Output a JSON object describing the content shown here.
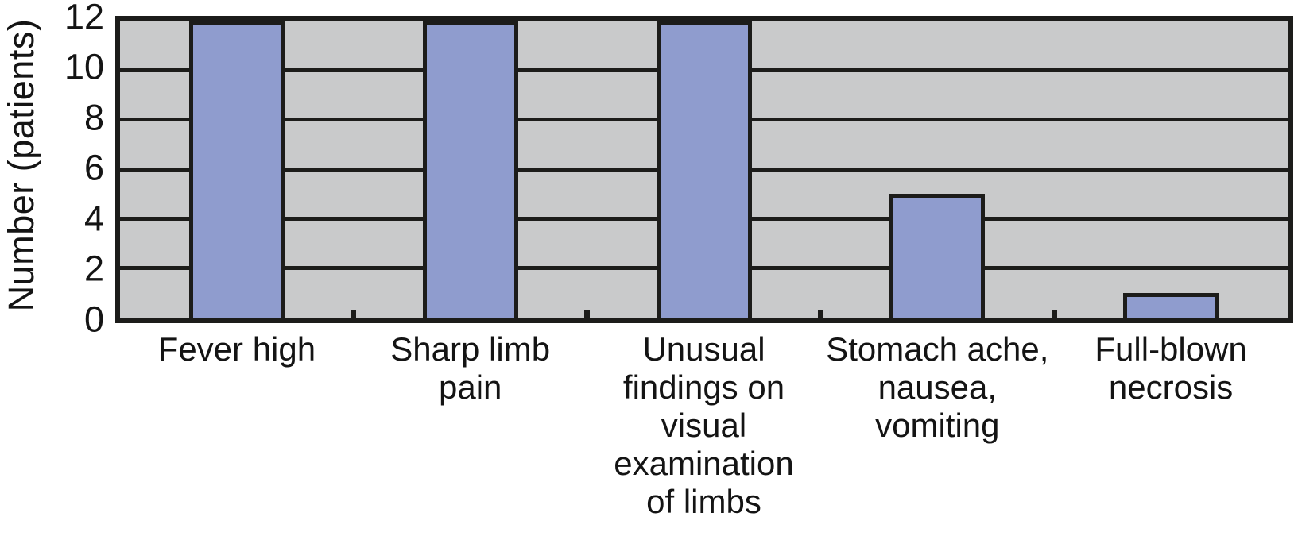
{
  "figure": {
    "background": "#ffffff"
  },
  "chart_data": {
    "type": "bar",
    "title": "",
    "xlabel": "",
    "ylabel": "Number (patients)",
    "categories": [
      "Fever high",
      "Sharp limb pain",
      "Unusual findings on visual examination of limbs",
      "Stomach ache, nausea, vomiting",
      "Full-blown necrosis"
    ],
    "category_display_lines": [
      "Fever high",
      "Sharp limb\npain",
      "Unusual\nfindings on\nvisual\nexamination\nof limbs",
      "Stomach ache,\nnausea,\nvomiting",
      "Full-blown\nnecrosis"
    ],
    "values": [
      12,
      12,
      12,
      5,
      1
    ],
    "ylim": [
      0,
      12
    ],
    "yticks": [
      0,
      2,
      4,
      6,
      8,
      10,
      12
    ],
    "gridline_values": [
      2,
      4,
      6,
      8,
      10
    ],
    "grid": "horizontal-on",
    "legend": "none",
    "bar_color": "#8f9cce",
    "bar_border_color": "#1c1c1a",
    "plot_background": "#c9cacb",
    "axis_color": "#1c1c1a",
    "text_color": "#141414"
  }
}
